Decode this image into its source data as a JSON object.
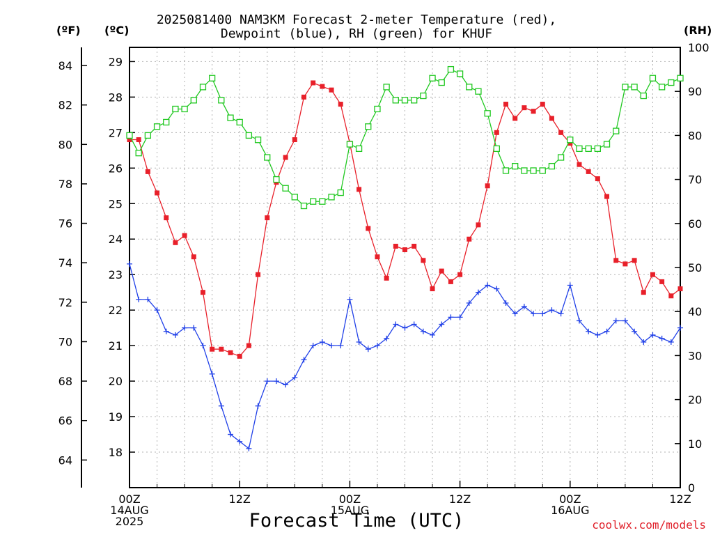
{
  "title": {
    "line1": "2025081400 NAM3KM Forecast 2-meter Temperature (red),",
    "line2": "Dewpoint (blue), RH (green) for KHUF"
  },
  "units": {
    "fahrenheit": "(ºF)",
    "celsius": "(ºC)",
    "rh": "(RH)"
  },
  "xlabel": "Forecast Time (UTC)",
  "credit": "coolwx.com/models",
  "chart_data": {
    "type": "line",
    "x_axis": {
      "range_hours": [
        0,
        60
      ],
      "ticks": [
        {
          "hour": 0,
          "lines": [
            "00Z",
            "14AUG",
            "2025"
          ]
        },
        {
          "hour": 12,
          "lines": [
            "12Z"
          ]
        },
        {
          "hour": 24,
          "lines": [
            "00Z",
            "15AUG"
          ]
        },
        {
          "hour": 36,
          "lines": [
            "12Z"
          ]
        },
        {
          "hour": 48,
          "lines": [
            "00Z",
            "16AUG"
          ]
        },
        {
          "hour": 60,
          "lines": [
            "12Z"
          ]
        }
      ]
    },
    "y_celsius": {
      "range": [
        17.0,
        29.4
      ],
      "ticks": [
        18,
        19,
        20,
        21,
        22,
        23,
        24,
        25,
        26,
        27,
        28,
        29
      ]
    },
    "y_fahrenheit": {
      "ticks": [
        64,
        66,
        68,
        70,
        72,
        74,
        76,
        78,
        80,
        82,
        84
      ]
    },
    "y_rh": {
      "range": [
        0,
        100
      ],
      "ticks": [
        0,
        10,
        20,
        30,
        40,
        50,
        60,
        70,
        80,
        90,
        100
      ]
    },
    "grid": true,
    "series": [
      {
        "name": "Temperature",
        "axis": "celsius",
        "color": "#e8202a",
        "marker": "filled-square",
        "x": [
          0,
          1,
          2,
          3,
          4,
          5,
          6,
          7,
          8,
          9,
          10,
          11,
          12,
          13,
          14,
          15,
          16,
          17,
          18,
          19,
          20,
          21,
          22,
          23,
          24,
          25,
          26,
          27,
          28,
          29,
          30,
          31,
          32,
          33,
          34,
          35,
          36,
          37,
          38,
          39,
          40,
          41,
          42,
          43,
          44,
          45,
          46,
          47,
          48,
          49,
          50,
          51,
          52,
          53,
          54,
          55,
          56,
          57,
          58,
          59,
          60
        ],
        "values": [
          26.8,
          26.8,
          25.9,
          25.3,
          24.6,
          23.9,
          24.1,
          23.5,
          22.5,
          20.9,
          20.9,
          20.8,
          20.7,
          21.0,
          23.0,
          24.6,
          25.6,
          26.3,
          26.8,
          28.0,
          28.4,
          28.3,
          28.2,
          27.8,
          26.7,
          25.4,
          24.3,
          23.5,
          22.9,
          23.8,
          23.7,
          23.8,
          23.4,
          22.6,
          23.1,
          22.8,
          23.0,
          24.0,
          24.4,
          25.5,
          27.0,
          27.8,
          27.4,
          27.7,
          27.6,
          27.8,
          27.4,
          27.0,
          26.7,
          26.1,
          25.9,
          25.7,
          25.2,
          23.4,
          23.3,
          23.4,
          22.5,
          23.0,
          22.8,
          22.4,
          22.6
        ]
      },
      {
        "name": "Dewpoint",
        "axis": "celsius",
        "color": "#2040e8",
        "marker": "plus",
        "x": [
          0,
          1,
          2,
          3,
          4,
          5,
          6,
          7,
          8,
          9,
          10,
          11,
          12,
          13,
          14,
          15,
          16,
          17,
          18,
          19,
          20,
          21,
          22,
          23,
          24,
          25,
          26,
          27,
          28,
          29,
          30,
          31,
          32,
          33,
          34,
          35,
          36,
          37,
          38,
          39,
          40,
          41,
          42,
          43,
          44,
          45,
          46,
          47,
          48,
          49,
          50,
          51,
          52,
          53,
          54,
          55,
          56,
          57,
          58,
          59,
          60
        ],
        "values": [
          23.3,
          22.3,
          22.3,
          22.0,
          21.4,
          21.3,
          21.5,
          21.5,
          21.0,
          20.2,
          19.3,
          18.5,
          18.3,
          18.1,
          19.3,
          20.0,
          20.0,
          19.9,
          20.1,
          20.6,
          21.0,
          21.1,
          21.0,
          21.0,
          22.3,
          21.1,
          20.9,
          21.0,
          21.2,
          21.6,
          21.5,
          21.6,
          21.4,
          21.3,
          21.6,
          21.8,
          21.8,
          22.2,
          22.5,
          22.7,
          22.6,
          22.2,
          21.9,
          22.1,
          21.9,
          21.9,
          22.0,
          21.9,
          22.7,
          21.7,
          21.4,
          21.3,
          21.4,
          21.7,
          21.7,
          21.4,
          21.1,
          21.3,
          21.2,
          21.1,
          21.5
        ]
      },
      {
        "name": "RH",
        "axis": "rh",
        "color": "#20c820",
        "marker": "open-square",
        "x": [
          0,
          1,
          2,
          3,
          4,
          5,
          6,
          7,
          8,
          9,
          10,
          11,
          12,
          13,
          14,
          15,
          16,
          17,
          18,
          19,
          20,
          21,
          22,
          23,
          24,
          25,
          26,
          27,
          28,
          29,
          30,
          31,
          32,
          33,
          34,
          35,
          36,
          37,
          38,
          39,
          40,
          41,
          42,
          43,
          44,
          45,
          46,
          47,
          48,
          49,
          50,
          51,
          52,
          53,
          54,
          55,
          56,
          57,
          58,
          59,
          60
        ],
        "values": [
          80,
          76,
          80,
          82,
          83,
          86,
          86,
          88,
          91,
          93,
          88,
          84,
          83,
          80,
          79,
          75,
          70,
          68,
          66,
          64,
          65,
          65,
          66,
          67,
          78,
          77,
          82,
          86,
          91,
          88,
          88,
          88,
          89,
          93,
          92,
          95,
          94,
          91,
          90,
          85,
          77,
          72,
          73,
          72,
          72,
          72,
          73,
          75,
          79,
          77,
          77,
          77,
          78,
          81,
          91,
          91,
          89,
          93,
          91,
          92,
          93
        ]
      }
    ]
  }
}
